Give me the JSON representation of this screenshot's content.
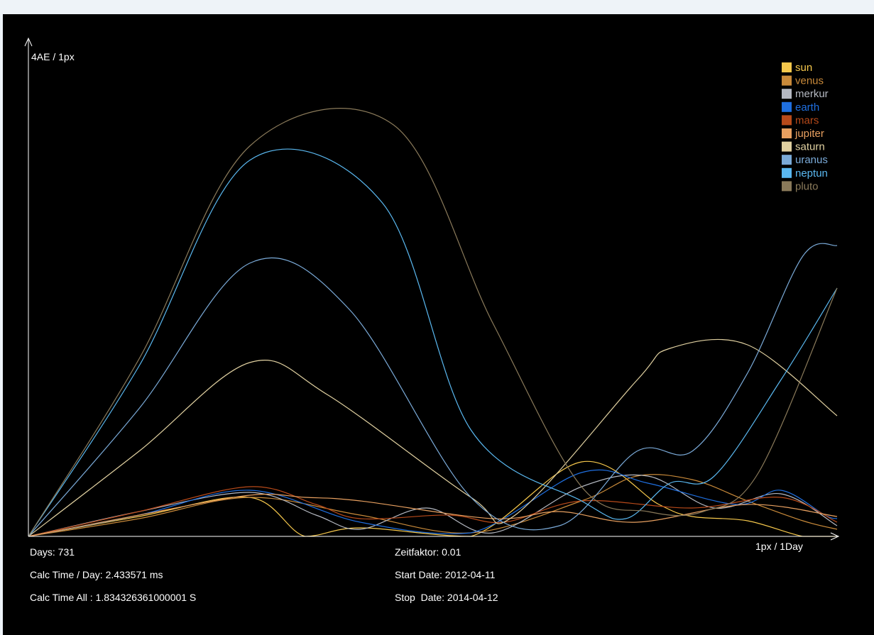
{
  "y_axis_label": "4AE / 1px",
  "x_axis_label": "1px / 1Day",
  "stats": {
    "days": "Days: 731",
    "calc_time_day": "Calc Time / Day: 2.433571 ms",
    "calc_time_all": "Calc Time All : 1.834326361000001 S",
    "zeitfaktor": "Zeitfaktor: 0.01",
    "start_date": "Start Date: 2012-04-11",
    "stop_date": "Stop  Date: 2014-04-12"
  },
  "chart_data": {
    "type": "line",
    "x_unit": "day",
    "x_range": [
      0,
      731
    ],
    "y_range": [
      0,
      700
    ],
    "legend_position": "top-right",
    "grid": false,
    "series": [
      {
        "name": "sun",
        "color": "#f6c84c",
        "x": [
          0,
          100,
          200,
          250,
          300,
          400,
          500,
          570,
          600,
          650,
          700,
          731
        ],
        "y": [
          0,
          28,
          55,
          0,
          12,
          0,
          105,
          45,
          28,
          22,
          0,
          0
        ]
      },
      {
        "name": "venus",
        "color": "#c98a3a",
        "x": [
          0,
          100,
          200,
          300,
          400,
          500,
          550,
          600,
          650,
          700,
          731
        ],
        "y": [
          0,
          25,
          55,
          30,
          5,
          50,
          85,
          80,
          50,
          22,
          10
        ]
      },
      {
        "name": "merkur",
        "color": "#b5b9c2",
        "x": [
          0,
          100,
          200,
          260,
          300,
          360,
          420,
          500,
          560,
          620,
          680,
          731
        ],
        "y": [
          0,
          35,
          62,
          30,
          10,
          40,
          5,
          70,
          85,
          40,
          60,
          15
        ]
      },
      {
        "name": "earth",
        "color": "#1f6fe0",
        "x": [
          0,
          100,
          200,
          300,
          400,
          500,
          560,
          640,
          680,
          720,
          731
        ],
        "y": [
          0,
          30,
          65,
          20,
          5,
          90,
          75,
          45,
          65,
          30,
          25
        ]
      },
      {
        "name": "mars",
        "color": "#b84a1a",
        "x": [
          0,
          100,
          200,
          260,
          300,
          380,
          430,
          500,
          600,
          680,
          731
        ],
        "y": [
          0,
          35,
          70,
          45,
          25,
          30,
          20,
          50,
          40,
          55,
          20
        ]
      },
      {
        "name": "jupiter",
        "color": "#e8a060",
        "x": [
          0,
          100,
          200,
          250,
          300,
          420,
          480,
          550,
          650,
          731
        ],
        "y": [
          0,
          30,
          58,
          55,
          50,
          25,
          35,
          20,
          45,
          28
        ]
      },
      {
        "name": "saturn",
        "color": "#e0d0a0",
        "x": [
          0,
          100,
          200,
          270,
          400,
          440,
          550,
          580,
          650,
          731
        ],
        "y": [
          0,
          120,
          245,
          200,
          55,
          30,
          220,
          265,
          270,
          170
        ]
      },
      {
        "name": "uranus",
        "color": "#7aaad8",
        "x": [
          0,
          100,
          200,
          290,
          400,
          480,
          550,
          600,
          650,
          700,
          731
        ],
        "y": [
          0,
          180,
          385,
          320,
          55,
          15,
          120,
          120,
          230,
          395,
          410
        ]
      },
      {
        "name": "neptun",
        "color": "#5ab8f0",
        "x": [
          0,
          100,
          200,
          320,
          400,
          500,
          540,
          580,
          620,
          680,
          731
        ],
        "y": [
          0,
          240,
          530,
          470,
          150,
          50,
          25,
          75,
          85,
          220,
          350
        ]
      },
      {
        "name": "pluto",
        "color": "#8a7a5a",
        "x": [
          0,
          100,
          200,
          330,
          420,
          500,
          560,
          610,
          660,
          731
        ],
        "y": [
          0,
          250,
          550,
          580,
          300,
          70,
          35,
          35,
          90,
          350
        ]
      }
    ]
  }
}
